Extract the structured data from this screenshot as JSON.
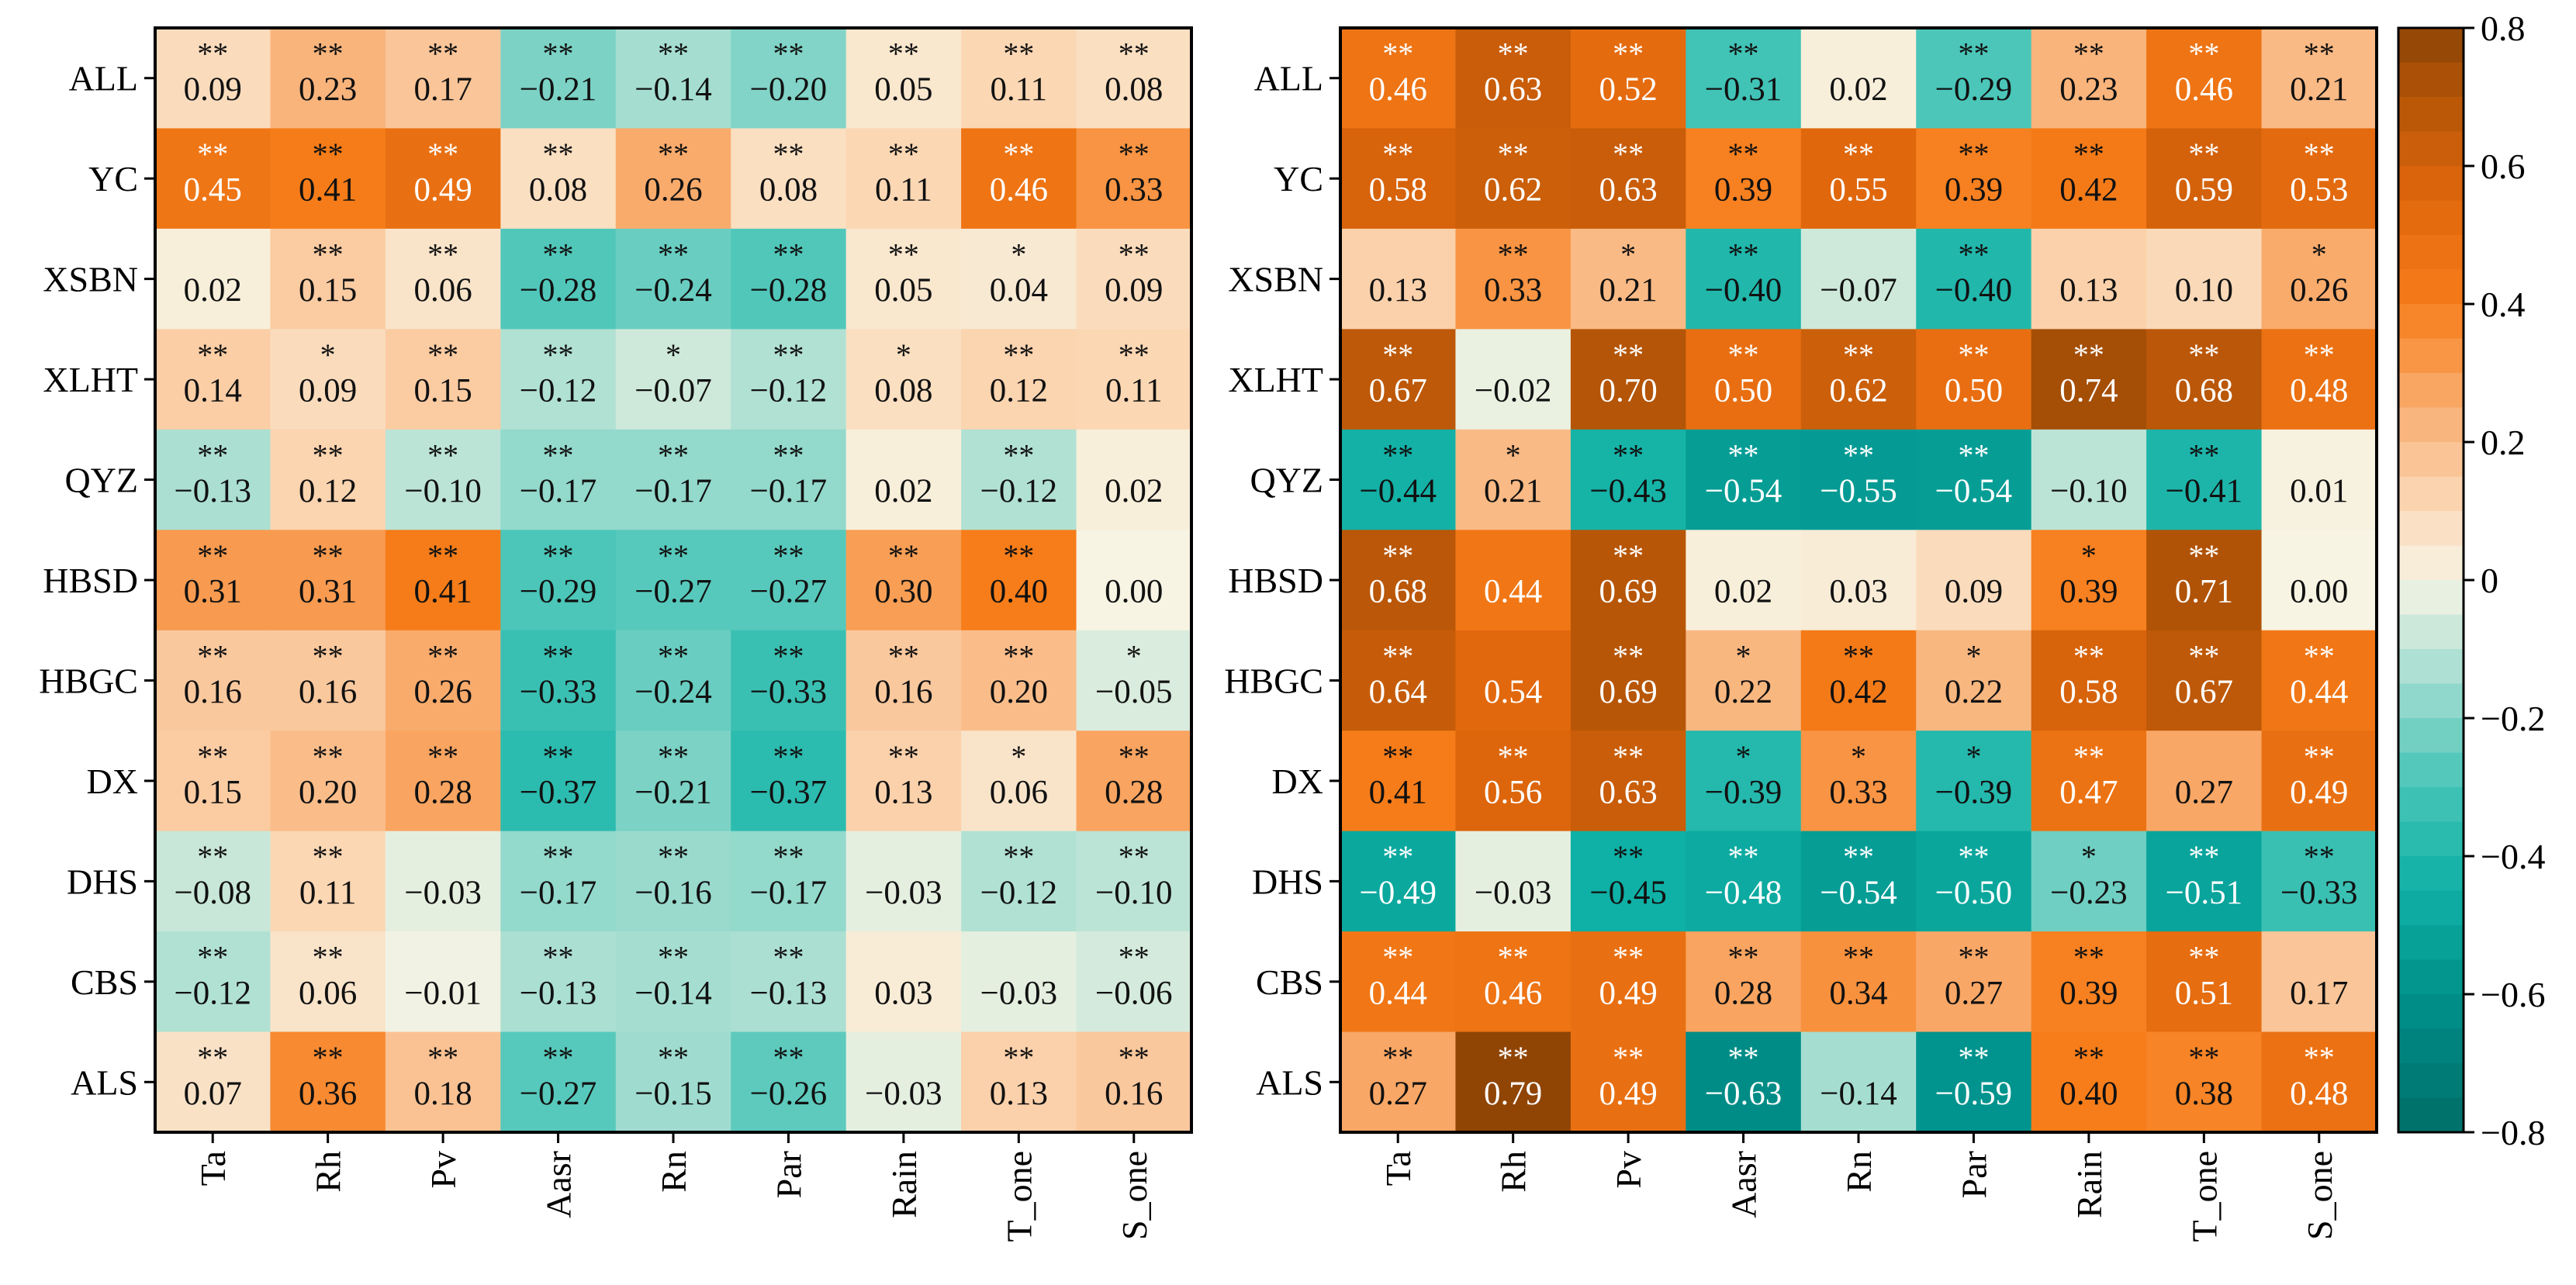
{
  "chart_data": [
    {
      "type": "heatmap",
      "panel": "left",
      "rows": [
        "ALL",
        "YC",
        "XSBN",
        "XLHT",
        "QYZ",
        "HBSD",
        "HBGC",
        "DX",
        "DHS",
        "CBS",
        "ALS"
      ],
      "columns": [
        "Ta",
        "Rh",
        "Pv",
        "Aasr",
        "Rn",
        "Par",
        "Rain",
        "T_one",
        "S_one"
      ],
      "values": [
        [
          "0.09",
          "0.23",
          "0.17",
          "−0.21",
          "−0.14",
          "−0.20",
          "0.05",
          "0.11",
          "0.08"
        ],
        [
          "0.45",
          "0.41",
          "0.49",
          "0.08",
          "0.26",
          "0.08",
          "0.11",
          "0.46",
          "0.33"
        ],
        [
          "0.02",
          "0.15",
          "0.06",
          "−0.28",
          "−0.24",
          "−0.28",
          "0.05",
          "0.04",
          "0.09"
        ],
        [
          "0.14",
          "0.09",
          "0.15",
          "−0.12",
          "−0.07",
          "−0.12",
          "0.08",
          "0.12",
          "0.11"
        ],
        [
          "−0.13",
          "0.12",
          "−0.10",
          "−0.17",
          "−0.17",
          "−0.17",
          "0.02",
          "−0.12",
          "0.02"
        ],
        [
          "0.31",
          "0.31",
          "0.41",
          "−0.29",
          "−0.27",
          "−0.27",
          "0.30",
          "0.40",
          "0.00"
        ],
        [
          "0.16",
          "0.16",
          "0.26",
          "−0.33",
          "−0.24",
          "−0.33",
          "0.16",
          "0.20",
          "−0.05"
        ],
        [
          "0.15",
          "0.20",
          "0.28",
          "−0.37",
          "−0.21",
          "−0.37",
          "0.13",
          "0.06",
          "0.28"
        ],
        [
          "−0.08",
          "0.11",
          "−0.03",
          "−0.17",
          "−0.16",
          "−0.17",
          "−0.03",
          "−0.12",
          "−0.10"
        ],
        [
          "−0.12",
          "0.06",
          "−0.01",
          "−0.13",
          "−0.14",
          "−0.13",
          "0.03",
          "−0.03",
          "−0.06"
        ],
        [
          "0.07",
          "0.36",
          "0.18",
          "−0.27",
          "−0.15",
          "−0.26",
          "−0.03",
          "0.13",
          "0.16"
        ]
      ],
      "significance": [
        [
          "**",
          "**",
          "**",
          "**",
          "**",
          "**",
          "**",
          "**",
          "**"
        ],
        [
          "**",
          "**",
          "**",
          "**",
          "**",
          "**",
          "**",
          "**",
          "**"
        ],
        [
          "",
          "**",
          "**",
          "**",
          "**",
          "**",
          "**",
          "*",
          "**"
        ],
        [
          "**",
          "*",
          "**",
          "**",
          "*",
          "**",
          "*",
          "**",
          "**"
        ],
        [
          "**",
          "**",
          "**",
          "**",
          "**",
          "**",
          "",
          "**",
          ""
        ],
        [
          "**",
          "**",
          "**",
          "**",
          "**",
          "**",
          "**",
          "**",
          ""
        ],
        [
          "**",
          "**",
          "**",
          "**",
          "**",
          "**",
          "**",
          "**",
          "*"
        ],
        [
          "**",
          "**",
          "**",
          "**",
          "**",
          "**",
          "**",
          "*",
          "**"
        ],
        [
          "**",
          "**",
          "",
          "**",
          "**",
          "**",
          "",
          "**",
          "**"
        ],
        [
          "**",
          "**",
          "",
          "**",
          "**",
          "**",
          "",
          "",
          "**"
        ],
        [
          "**",
          "**",
          "**",
          "**",
          "**",
          "**",
          "",
          "**",
          "**"
        ]
      ]
    },
    {
      "type": "heatmap",
      "panel": "right",
      "rows": [
        "ALL",
        "YC",
        "XSBN",
        "XLHT",
        "QYZ",
        "HBSD",
        "HBGC",
        "DX",
        "DHS",
        "CBS",
        "ALS"
      ],
      "columns": [
        "Ta",
        "Rh",
        "Pv",
        "Aasr",
        "Rn",
        "Par",
        "Rain",
        "T_one",
        "S_one"
      ],
      "values": [
        [
          "0.46",
          "0.63",
          "0.52",
          "−0.31",
          "0.02",
          "−0.29",
          "0.23",
          "0.46",
          "0.21"
        ],
        [
          "0.58",
          "0.62",
          "0.63",
          "0.39",
          "0.55",
          "0.39",
          "0.42",
          "0.59",
          "0.53"
        ],
        [
          "0.13",
          "0.33",
          "0.21",
          "−0.40",
          "−0.07",
          "−0.40",
          "0.13",
          "0.10",
          "0.26"
        ],
        [
          "0.67",
          "−0.02",
          "0.70",
          "0.50",
          "0.62",
          "0.50",
          "0.74",
          "0.68",
          "0.48"
        ],
        [
          "−0.44",
          "0.21",
          "−0.43",
          "−0.54",
          "−0.55",
          "−0.54",
          "−0.10",
          "−0.41",
          "0.01"
        ],
        [
          "0.68",
          "0.44",
          "0.69",
          "0.02",
          "0.03",
          "0.09",
          "0.39",
          "0.71",
          "0.00"
        ],
        [
          "0.64",
          "0.54",
          "0.69",
          "0.22",
          "0.42",
          "0.22",
          "0.58",
          "0.67",
          "0.44"
        ],
        [
          "0.41",
          "0.56",
          "0.63",
          "−0.39",
          "0.33",
          "−0.39",
          "0.47",
          "0.27",
          "0.49"
        ],
        [
          "−0.49",
          "−0.03",
          "−0.45",
          "−0.48",
          "−0.54",
          "−0.50",
          "−0.23",
          "−0.51",
          "−0.33"
        ],
        [
          "0.44",
          "0.46",
          "0.49",
          "0.28",
          "0.34",
          "0.27",
          "0.39",
          "0.51",
          "0.17"
        ],
        [
          "0.27",
          "0.79",
          "0.49",
          "−0.63",
          "−0.14",
          "−0.59",
          "0.40",
          "0.38",
          "0.48"
        ]
      ],
      "significance": [
        [
          "**",
          "**",
          "**",
          "**",
          "",
          "**",
          "**",
          "**",
          "**"
        ],
        [
          "**",
          "**",
          "**",
          "**",
          "**",
          "**",
          "**",
          "**",
          "**"
        ],
        [
          "",
          "**",
          "*",
          "**",
          "",
          "**",
          "",
          "",
          "*"
        ],
        [
          "**",
          "",
          "**",
          "**",
          "**",
          "**",
          "**",
          "**",
          "**"
        ],
        [
          "**",
          "*",
          "**",
          "**",
          "**",
          "**",
          "",
          "**",
          ""
        ],
        [
          "**",
          "",
          "**",
          "",
          "",
          "",
          "*",
          "**",
          ""
        ],
        [
          "**",
          "",
          "**",
          "*",
          "**",
          "*",
          "**",
          "**",
          "**"
        ],
        [
          "**",
          "**",
          "**",
          "*",
          "*",
          "*",
          "**",
          "",
          "**"
        ],
        [
          "**",
          "",
          "**",
          "**",
          "**",
          "**",
          "*",
          "**",
          "**"
        ],
        [
          "**",
          "**",
          "**",
          "**",
          "**",
          "**",
          "**",
          "**",
          ""
        ],
        [
          "**",
          "**",
          "**",
          "**",
          "",
          "**",
          "**",
          "**",
          "**"
        ]
      ]
    }
  ],
  "colorbar": {
    "min": -0.8,
    "max": 0.8,
    "ticks": [
      "−0.8",
      "−0.6",
      "−0.4",
      "−0.2",
      "0",
      "0.2",
      "0.4",
      "0.6",
      "0.8"
    ],
    "tick_values": [
      -0.8,
      -0.6,
      -0.4,
      -0.2,
      0,
      0.2,
      0.4,
      0.6,
      0.8
    ],
    "stops": [
      {
        "v": -0.8,
        "color": "#006d68"
      },
      {
        "v": -0.6,
        "color": "#00918b"
      },
      {
        "v": -0.45,
        "color": "#0fb0a5"
      },
      {
        "v": -0.3,
        "color": "#45c4b7"
      },
      {
        "v": -0.15,
        "color": "#9fdccf"
      },
      {
        "v": 0.0,
        "color": "#f7f4e4"
      },
      {
        "v": 0.12,
        "color": "#fbd4b0"
      },
      {
        "v": 0.25,
        "color": "#f9ae72"
      },
      {
        "v": 0.4,
        "color": "#f77d1a"
      },
      {
        "v": 0.55,
        "color": "#e0670c"
      },
      {
        "v": 0.7,
        "color": "#b45507"
      },
      {
        "v": 0.8,
        "color": "#8c4305"
      }
    ]
  }
}
